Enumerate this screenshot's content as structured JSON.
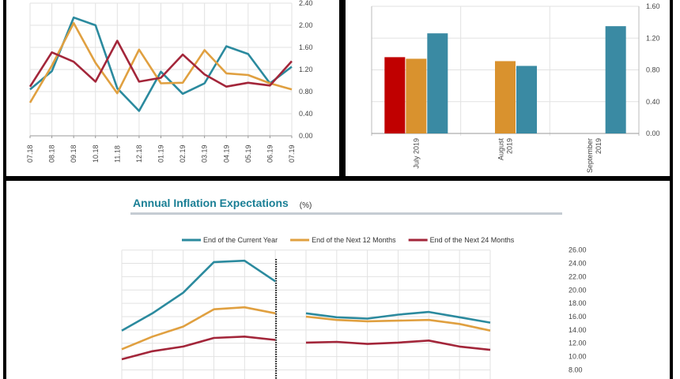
{
  "colors": {
    "teal": "#2b8a9e",
    "orange": "#e0a040",
    "red": "#a3263a",
    "bar_red": "#c00000",
    "bar_orange": "#d9922e",
    "bar_teal": "#3a8aa3"
  },
  "chart_data": [
    {
      "type": "line",
      "categories": [
        "07.18",
        "08.18",
        "09.18",
        "10.18",
        "11.18",
        "12.18",
        "01.19",
        "02.19",
        "03.19",
        "04.19",
        "05.19",
        "06.19",
        "07.19"
      ],
      "ylim": [
        0,
        2.4
      ],
      "yticks": [
        "0.00",
        "0.40",
        "0.80",
        "1.20",
        "1.60",
        "2.00",
        "2.40"
      ],
      "grid": true,
      "series": [
        {
          "color": "#2b8a9e",
          "values": [
            0.84,
            1.17,
            2.14,
            2.0,
            0.86,
            0.45,
            1.16,
            0.76,
            0.95,
            1.62,
            1.48,
            0.95,
            1.25
          ]
        },
        {
          "color": "#e0a040",
          "values": [
            0.6,
            1.27,
            2.04,
            1.32,
            0.77,
            1.56,
            0.95,
            0.96,
            1.55,
            1.13,
            1.1,
            0.95,
            0.84
          ]
        },
        {
          "color": "#a3263a",
          "values": [
            0.89,
            1.51,
            1.34,
            0.98,
            1.72,
            0.98,
            1.05,
            1.47,
            1.11,
            0.89,
            0.96,
            0.91,
            1.35
          ]
        }
      ]
    },
    {
      "type": "bar",
      "categories": [
        "July 2019",
        "August 2019",
        "September 2019"
      ],
      "category_lines": [
        [
          "July 2019"
        ],
        [
          "August",
          "2019"
        ],
        [
          "September",
          "2019"
        ]
      ],
      "ylim": [
        0,
        1.6
      ],
      "yticks": [
        "0.00",
        "0.40",
        "0.80",
        "1.20",
        "1.60"
      ],
      "grid": true,
      "series": [
        {
          "color": "#c00000",
          "values": [
            0.96,
            null,
            null
          ]
        },
        {
          "color": "#d9922e",
          "values": [
            0.94,
            0.91,
            null
          ]
        },
        {
          "color": "#3a8aa3",
          "values": [
            1.26,
            0.85,
            1.35
          ]
        }
      ]
    },
    {
      "type": "line",
      "title": "Annual Inflation Expectations",
      "unit": "(%)",
      "legend_position": "top",
      "ylim": [
        8,
        26
      ],
      "yticks": [
        "8.00",
        "10.00",
        "12.00",
        "14.00",
        "16.00",
        "18.00",
        "20.00",
        "22.00",
        "24.00",
        "26.00"
      ],
      "grid": true,
      "series": [
        {
          "name": "End of the Current Year",
          "color": "#2b8a9e",
          "values": [
            13.9,
            16.5,
            19.6,
            24.2,
            24.4,
            21.3,
            null,
            16.5,
            15.9,
            15.7,
            16.3,
            16.7,
            15.9,
            15.1
          ]
        },
        {
          "name": "End of the Next 12 Months",
          "color": "#e0a040",
          "values": [
            11.1,
            13.0,
            14.5,
            17.1,
            17.4,
            16.5,
            null,
            16.0,
            15.5,
            15.3,
            15.4,
            15.5,
            14.9,
            13.9
          ]
        },
        {
          "name": "End of the Next 24 Months",
          "color": "#a3263a",
          "values": [
            9.6,
            10.8,
            11.5,
            12.8,
            13.0,
            12.5,
            null,
            12.1,
            12.2,
            11.9,
            12.1,
            12.4,
            11.5,
            11.0
          ]
        }
      ]
    }
  ]
}
